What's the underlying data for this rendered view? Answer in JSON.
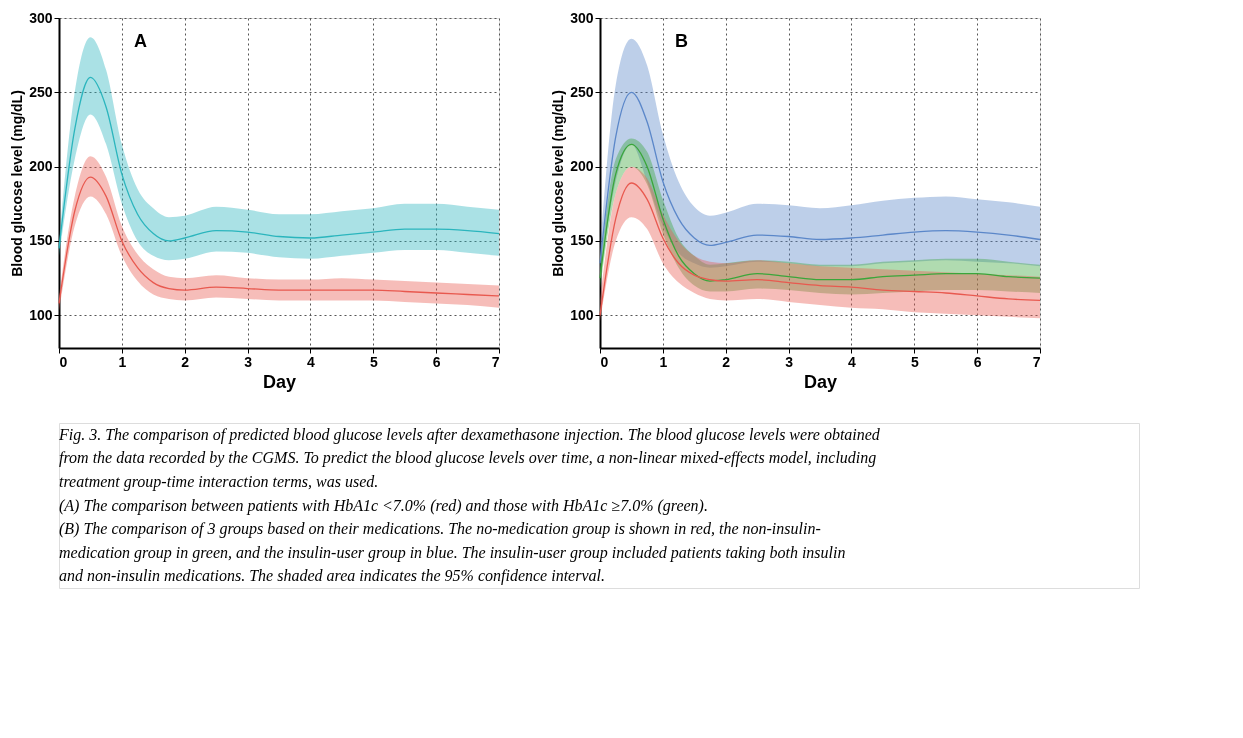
{
  "chart_data": [
    {
      "type": "line",
      "title": "A",
      "xlabel": "Day",
      "ylabel": "Blood glucose level (mg/dL)",
      "x": [
        0,
        0.25,
        0.5,
        0.75,
        1,
        1.25,
        1.5,
        1.75,
        2,
        2.5,
        3,
        3.5,
        4,
        4.5,
        5,
        5.5,
        6,
        6.5,
        7
      ],
      "series": [
        {
          "color": "#2bb5bd",
          "values": [
            145,
            225,
            260,
            240,
            195,
            168,
            155,
            150,
            152,
            157,
            156,
            153,
            152,
            154,
            156,
            158,
            158,
            157,
            155
          ],
          "lower": [
            140,
            205,
            235,
            215,
            175,
            150,
            140,
            137,
            138,
            143,
            142,
            139,
            138,
            140,
            142,
            144,
            144,
            142,
            140
          ],
          "upper": [
            150,
            250,
            287,
            265,
            215,
            185,
            172,
            166,
            167,
            173,
            171,
            168,
            168,
            170,
            172,
            175,
            175,
            173,
            171
          ]
        },
        {
          "color": "#e8594f",
          "values": [
            108,
            170,
            193,
            180,
            150,
            132,
            122,
            118,
            117,
            119,
            118,
            117,
            117,
            117,
            117,
            116,
            115,
            114,
            113
          ],
          "lower": [
            103,
            160,
            180,
            168,
            140,
            123,
            114,
            111,
            110,
            112,
            111,
            110,
            110,
            110,
            110,
            109,
            108,
            107,
            105
          ],
          "upper": [
            113,
            180,
            207,
            193,
            160,
            141,
            131,
            126,
            125,
            127,
            125,
            124,
            124,
            125,
            124,
            123,
            122,
            121,
            120
          ]
        }
      ],
      "xlim": [
        0,
        7
      ],
      "xticks": [
        0,
        1,
        2,
        3,
        4,
        5,
        6,
        7
      ],
      "ylim": [
        78,
        300
      ],
      "yticks": [
        100,
        150,
        200,
        250,
        300
      ],
      "grid": true,
      "marker": "none",
      "line_style": "solid",
      "annotations": [
        "Fig. 3. The comparison of  predicted blood glucose levels after dexamethasone injection. The blood glucose levels were obtained",
        "from the data recorded by the CGMS.  To predict the blood glucose levels over time, a non-linear mixed-effects model, including",
        "treatment group-time interaction terms, was used.",
        "(A) The comparison between patients with HbA1c <7.0% (red) and those with HbA1c ≥7.0% (green).",
        "(B) The comparison of 3 groups based on their medications. The no-medication group is shown in red, the non-insulin-",
        "medication group in green, and the insulin-user group in blue. The insulin-user group included patients taking both insulin",
        "and non-insulin medications. The shaded area indicates the 95% confidence interval."
      ]
    },
    {
      "type": "line",
      "title": "B",
      "xlabel": "Day",
      "ylabel": "Blood glucose level (mg/dL)",
      "x": [
        0,
        0.25,
        0.5,
        0.75,
        1,
        1.25,
        1.5,
        1.75,
        2,
        2.5,
        3,
        3.5,
        4,
        4.5,
        5,
        5.5,
        6,
        6.5,
        7
      ],
      "series": [
        {
          "color": "#5b87c9",
          "values": [
            135,
            220,
            250,
            230,
            190,
            165,
            152,
            147,
            149,
            154,
            153,
            151,
            152,
            154,
            156,
            157,
            156,
            154,
            151
          ],
          "lower": [
            125,
            190,
            215,
            190,
            160,
            142,
            135,
            132,
            133,
            136,
            135,
            133,
            133,
            135,
            136,
            137,
            136,
            135,
            133
          ],
          "upper": [
            145,
            255,
            286,
            268,
            222,
            190,
            173,
            167,
            169,
            175,
            174,
            172,
            174,
            177,
            179,
            180,
            178,
            176,
            173
          ]
        },
        {
          "color": "#3aa63a",
          "values": [
            125,
            195,
            215,
            200,
            165,
            140,
            128,
            123,
            124,
            128,
            126,
            124,
            124,
            126,
            127,
            128,
            128,
            126,
            125
          ],
          "lower": [
            118,
            182,
            200,
            188,
            155,
            132,
            120,
            116,
            116,
            118,
            117,
            115,
            114,
            115,
            116,
            117,
            117,
            116,
            115
          ],
          "upper": [
            132,
            205,
            219,
            210,
            178,
            152,
            140,
            134,
            135,
            137,
            136,
            134,
            134,
            136,
            137,
            138,
            138,
            136,
            134
          ]
        },
        {
          "color": "#e8594f",
          "values": [
            100,
            165,
            189,
            178,
            152,
            135,
            127,
            124,
            123,
            124,
            122,
            120,
            119,
            117,
            116,
            115,
            113,
            111,
            110
          ],
          "lower": [
            96,
            150,
            166,
            158,
            135,
            122,
            115,
            111,
            110,
            111,
            109,
            107,
            105,
            104,
            102,
            101,
            100,
            99,
            98
          ],
          "upper": [
            110,
            182,
            200,
            192,
            168,
            150,
            140,
            136,
            135,
            137,
            135,
            133,
            132,
            131,
            130,
            129,
            128,
            127,
            126
          ]
        }
      ],
      "xlim": [
        0,
        7
      ],
      "xticks": [
        0,
        1,
        2,
        3,
        4,
        5,
        6,
        7
      ],
      "ylim": [
        78,
        300
      ],
      "yticks": [
        100,
        150,
        200,
        250,
        300
      ],
      "grid": true,
      "marker": "none",
      "line_style": "solid"
    }
  ]
}
